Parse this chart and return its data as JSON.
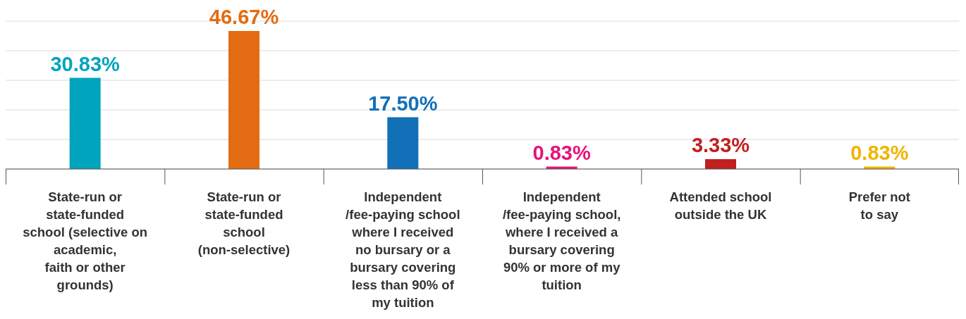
{
  "chart_data": {
    "type": "bar",
    "categories": [
      "State-run or\nstate-funded\nschool (selective on\nacademic,\nfaith or other\ngrounds)",
      "State-run or\nstate-funded\nschool\n(non-selective)",
      "Independent\n/fee-paying school\nwhere I received\nno bursary or a\nbursary covering\nless than 90% of\nmy tuition",
      "Independent\n/fee-paying school,\nwhere I received a\nbursary covering\n90% or more of my\ntuition",
      "Attended school\noutside the UK",
      "Prefer not\nto say"
    ],
    "values": [
      30.83,
      46.67,
      17.5,
      0.83,
      3.33,
      0.83
    ],
    "value_labels": [
      "30.83%",
      "46.67%",
      "17.50%",
      "0.83%",
      "3.33%",
      "0.83%"
    ],
    "colors": [
      "#00a5bd",
      "#e36c12",
      "#1170b8",
      "#e6137a",
      "#c1201f",
      "#f0b400"
    ],
    "ylim": [
      0,
      50
    ],
    "yticks": [
      {
        "value": 0,
        "label": null
      },
      {
        "value": 10,
        "label": null
      },
      {
        "value": 20,
        "label": null
      },
      {
        "value": 30,
        "label": null
      },
      {
        "value": 40,
        "label": null
      },
      {
        "value": 50,
        "label": null
      }
    ],
    "grid": "y",
    "tick_labels": "x"
  }
}
